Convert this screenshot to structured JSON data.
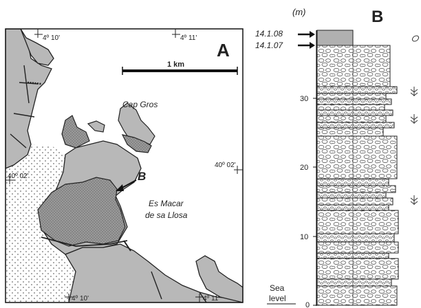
{
  "panel_a": {
    "letter": "A",
    "scale_label": "1 km",
    "coords": {
      "top_left": "4º 10'",
      "top_right": "4º 11'",
      "bottom_left": "4º 10'",
      "bottom_right": "4º 11'",
      "right_lat": "40º 02'",
      "left_lat": "40º 02'"
    },
    "place_cap_gros": "Cap Gros",
    "site_marker": "B",
    "place_es_macar_1": "Es Macar",
    "place_es_macar_2": "de sa Llosa"
  },
  "panel_b": {
    "letter": "B",
    "unit": "(m)",
    "sample_1": "14.1.08",
    "sample_2": "14.1.07",
    "depth_ticks": [
      "30",
      "20",
      "10",
      "0"
    ],
    "sea_level_1": "Sea",
    "sea_level_2": "level"
  },
  "colors": {
    "land_gray": "#b8b8b8",
    "outline": "#222222"
  }
}
